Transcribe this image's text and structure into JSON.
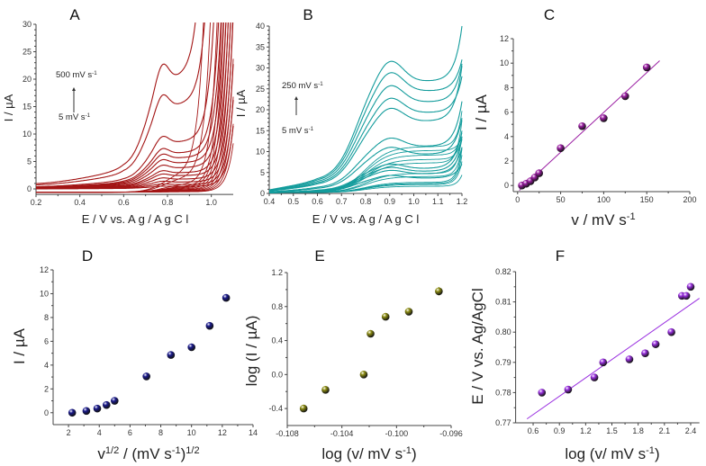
{
  "chart_data": [
    {
      "panel": "A",
      "type": "line",
      "xlabel": [
        {
          "t": "E  /  V  vs.  A g / A g C l"
        }
      ],
      "ylabel": [
        {
          "t": "I / µA"
        }
      ],
      "xlim": [
        0.2,
        1.1
      ],
      "ylim": [
        -1,
        30
      ],
      "xticks": [
        "0.2",
        "0.4",
        "0.6",
        "0.8",
        "1.0"
      ],
      "yticks": [
        "0",
        "5",
        "10",
        "15",
        "20",
        "25",
        "30"
      ],
      "annotation_top": [
        {
          "t": "500 mV s"
        },
        {
          "t": "-1",
          "sup": true
        }
      ],
      "annotation_bottom": [
        {
          "t": "5 mV s"
        },
        {
          "t": "-1",
          "sup": true
        }
      ],
      "color": "#a31515",
      "peak_potential": 0.775,
      "series": [
        {
          "peak_current": 22.5,
          "rise_potential": 0.96
        },
        {
          "peak_current": 17.0,
          "rise_potential": 0.99
        },
        {
          "peak_current": 9.5,
          "rise_potential": 1.02
        },
        {
          "peak_current": 7.3,
          "rise_potential": 1.04
        },
        {
          "peak_current": 6.3,
          "rise_potential": 1.05
        },
        {
          "peak_current": 5.3,
          "rise_potential": 1.06
        },
        {
          "peak_current": 4.3,
          "rise_potential": 1.07
        },
        {
          "peak_current": 3.3,
          "rise_potential": 1.08
        },
        {
          "peak_current": 2.7,
          "rise_potential": 1.09
        },
        {
          "peak_current": 2.0,
          "rise_potential": 1.1
        },
        {
          "peak_current": 1.4,
          "rise_potential": 1.11
        },
        {
          "peak_current": 0.9,
          "rise_potential": 1.12
        },
        {
          "peak_current": 0.5,
          "rise_potential": 1.13
        }
      ]
    },
    {
      "panel": "B",
      "type": "line",
      "xlabel": [
        {
          "t": "E  /  V  vs.  A g / A g C l"
        }
      ],
      "ylabel": [
        {
          "t": "I / µA"
        }
      ],
      "xlim": [
        0.4,
        1.2
      ],
      "ylim": [
        0,
        40
      ],
      "xticks": [
        "0.4",
        "0.5",
        "0.6",
        "0.7",
        "0.8",
        "0.9",
        "1.0",
        "1.1",
        "1.2"
      ],
      "yticks": [
        "0",
        "5",
        "10",
        "15",
        "20",
        "25",
        "30",
        "35",
        "40"
      ],
      "annotation_top": [
        {
          "t": "250 mV s"
        },
        {
          "t": "-1",
          "sup": true
        }
      ],
      "annotation_bottom": [
        {
          "t": "5 mV s"
        },
        {
          "t": "-1",
          "sup": true
        }
      ],
      "color": "#139c9c",
      "peak_potential": 0.9,
      "series": [
        {
          "peak_current": 31.5,
          "vertex_current": 40
        },
        {
          "peak_current": 28.8,
          "vertex_current": 32
        },
        {
          "peak_current": 25.7,
          "vertex_current": 31
        },
        {
          "peak_current": 22.7,
          "vertex_current": 28
        },
        {
          "peak_current": 20.3,
          "vertex_current": 30.5
        },
        {
          "peak_current": 13.2,
          "vertex_current": 22
        },
        {
          "peak_current": 11.0,
          "vertex_current": 18
        },
        {
          "peak_current": 7.0,
          "vertex_current": 15
        },
        {
          "peak_current": 6.2,
          "vertex_current": 13
        },
        {
          "peak_current": 5.5,
          "vertex_current": 11
        },
        {
          "peak_current": 4.3,
          "vertex_current": 7
        }
      ]
    },
    {
      "panel": "C",
      "type": "scatter",
      "xlabel": [
        {
          "t": "v / mV s"
        },
        {
          "t": "-1",
          "sup": true
        }
      ],
      "ylabel": [
        {
          "t": "I / µA"
        }
      ],
      "xlim": [
        -5,
        200
      ],
      "ylim": [
        -0.5,
        12
      ],
      "xticks": [
        "0",
        "50",
        "100",
        "150",
        "200"
      ],
      "yticks": [
        "0",
        "2",
        "4",
        "6",
        "8",
        "10",
        "12"
      ],
      "color": "#9b1fa3",
      "x": [
        5,
        10,
        15,
        20,
        25,
        50,
        75,
        100,
        125,
        150
      ],
      "y": [
        0.0,
        0.15,
        0.35,
        0.65,
        1.0,
        3.05,
        4.85,
        5.5,
        7.3,
        9.65
      ],
      "fit": {
        "x": [
          2,
          165
        ],
        "y": [
          -0.4,
          10.2
        ]
      }
    },
    {
      "panel": "D",
      "type": "scatter",
      "xlabel": [
        {
          "t": "v"
        },
        {
          "t": "1/2",
          "sup": true
        },
        {
          "t": " / (mV s"
        },
        {
          "t": "-1",
          "sup": true
        },
        {
          "t": ")"
        },
        {
          "t": "1/2",
          "sup": true
        }
      ],
      "ylabel": [
        {
          "t": "I / µA"
        }
      ],
      "xlim": [
        1,
        14
      ],
      "ylim": [
        -1,
        12
      ],
      "xticks": [
        "2",
        "4",
        "6",
        "8",
        "10",
        "12",
        "14"
      ],
      "yticks": [
        "0",
        "2",
        "4",
        "6",
        "8",
        "10",
        "12"
      ],
      "color": "#1a1a8c",
      "x": [
        2.24,
        3.16,
        3.87,
        4.47,
        5.0,
        7.07,
        8.66,
        10.0,
        11.18,
        12.25
      ],
      "y": [
        0.0,
        0.15,
        0.35,
        0.65,
        1.0,
        3.05,
        4.85,
        5.5,
        7.3,
        9.65
      ]
    },
    {
      "panel": "E",
      "type": "scatter",
      "xlabel": [
        {
          "t": "log (v/ mV s"
        },
        {
          "t": "-1",
          "sup": true
        },
        {
          "t": ")"
        }
      ],
      "ylabel": [
        {
          "t": "log (I / µA)"
        }
      ],
      "xlim": [
        -0.108,
        -0.096
      ],
      "ylim": [
        -0.6,
        1.2
      ],
      "xticks": [
        "-0.108",
        "-0.104",
        "-0.100",
        "-0.096"
      ],
      "yticks": [
        "-0.4",
        "0.0",
        "0.4",
        "0.8",
        "1.2"
      ],
      "color": "#8c8c12",
      "x": [
        -0.1068,
        -0.1052,
        -0.1024,
        -0.1019,
        -0.1008,
        -0.0991,
        -0.0969
      ],
      "y": [
        -0.4,
        -0.18,
        0.0,
        0.48,
        0.68,
        0.74,
        0.98
      ],
      "error": [
        0.01,
        0.01,
        0.01,
        0.01,
        0.03,
        0.03,
        0.05
      ]
    },
    {
      "panel": "F",
      "type": "scatter",
      "xlabel": [
        {
          "t": "log (v/ mV s"
        },
        {
          "t": "-1",
          "sup": true
        },
        {
          "t": ")"
        }
      ],
      "ylabel": [
        {
          "t": "E / V vs. Ag/AgCl"
        }
      ],
      "xlim": [
        0.4,
        2.5
      ],
      "ylim": [
        0.77,
        0.82
      ],
      "xticks": [
        "0.6",
        "0.9",
        "1.2",
        "1.5",
        "1.8",
        "2.1",
        "2.4"
      ],
      "yticks": [
        "0.77",
        "0.78",
        "0.79",
        "0.80",
        "0.81",
        "0.82"
      ],
      "color": "#9a30e0",
      "x": [
        0.7,
        1.0,
        1.3,
        1.4,
        1.7,
        1.88,
        2.0,
        2.18,
        2.3,
        2.35,
        2.4
      ],
      "y": [
        0.78,
        0.781,
        0.785,
        0.79,
        0.791,
        0.793,
        0.796,
        0.8,
        0.812,
        0.812,
        0.815
      ],
      "fit": {
        "x": [
          0.53,
          2.5
        ],
        "y": [
          0.7713,
          0.8112
        ]
      }
    }
  ]
}
